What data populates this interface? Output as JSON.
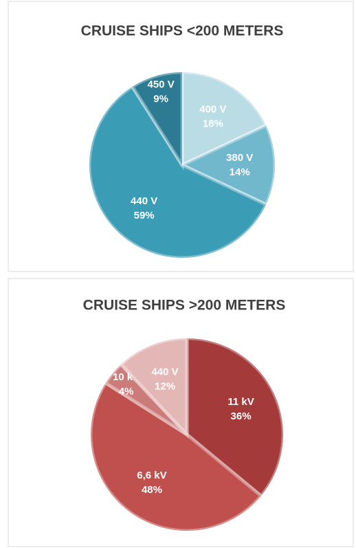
{
  "chart_data": [
    {
      "type": "pie",
      "title": "CRUISE SHIPS <200 METERS",
      "categories": [
        "400 V",
        "380 V",
        "440 V",
        "450 V"
      ],
      "values": [
        18,
        14,
        59,
        9
      ],
      "value_labels": [
        "18%",
        "14%",
        "59%",
        "9%"
      ],
      "colors": [
        "#b9dce5",
        "#72b8cc",
        "#3b9cb6",
        "#2c7b92"
      ]
    },
    {
      "type": "pie",
      "title": "CRUISE SHIPS >200 METERS",
      "categories": [
        "11 kV",
        "6,6 kV",
        "10 kV",
        "440 V"
      ],
      "values": [
        36,
        48,
        4,
        12
      ],
      "value_labels": [
        "36%",
        "48%",
        "4%",
        "12%"
      ],
      "colors": [
        "#a43a39",
        "#c0504d",
        "#cb7b79",
        "#e3b7b6"
      ]
    }
  ]
}
